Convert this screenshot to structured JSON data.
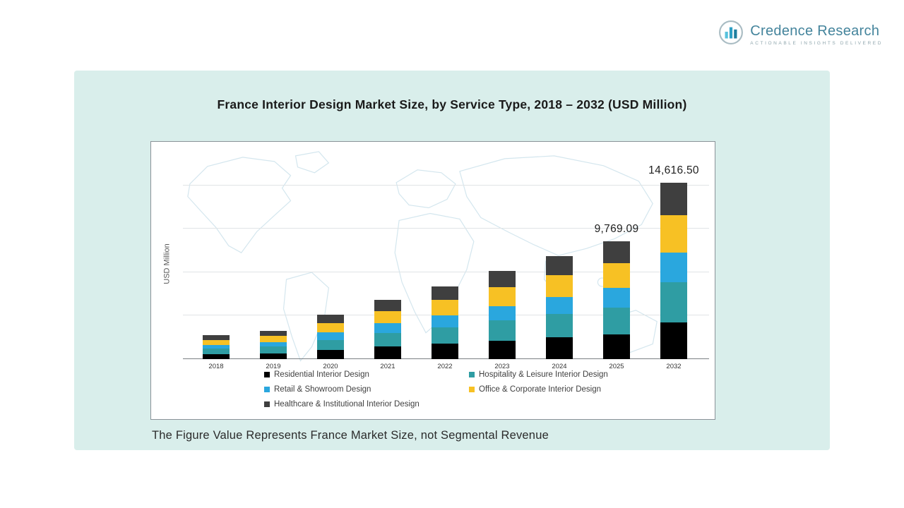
{
  "logo": {
    "name": "Credence Research",
    "tagline": "Actionable Insights Delivered",
    "brand_color": "#2D9FC4"
  },
  "title": "France Interior Design Market Size, by Service Type, 2018 – 2032 (USD Million)",
  "footnote": "The Figure Value Represents France Market Size, not Segmental Revenue",
  "chart_data": {
    "type": "bar",
    "stacked": true,
    "title": "France Interior Design Market Size, by Service Type, 2018 – 2032 (USD Million)",
    "xlabel": "",
    "ylabel": "USD Million",
    "ylim": [
      0,
      18000
    ],
    "grid": true,
    "legend_position": "bottom",
    "categories": [
      "2018",
      "2019",
      "2020",
      "2021",
      "2022",
      "2023",
      "2024",
      "2025",
      "2032"
    ],
    "series": [
      {
        "name": "Residential Interior Design",
        "color": "#000000",
        "values": [
          415,
          494,
          770,
          1027,
          1263,
          1530,
          1786,
          2051.51,
          3069.47
        ]
      },
      {
        "name": "Hospitality & Leisure Interior Design",
        "color": "#2F9DA3",
        "values": [
          450,
          536,
          836,
          1115,
          1371,
          1661,
          1939,
          2227.35,
          3332.56
        ]
      },
      {
        "name": "Retail & Showroom Design",
        "color": "#2AA7DE",
        "values": [
          330,
          392,
          612,
          817,
          1005,
          1217,
          1420,
          1631.44,
          2440.96
        ]
      },
      {
        "name": "Office & Corporate Interior Design",
        "color": "#F7C124",
        "values": [
          415,
          494,
          770,
          1027,
          1263,
          1530,
          1786,
          2051.51,
          3069.47
        ]
      },
      {
        "name": "Healthcare & Institutional Interior Design",
        "color": "#3F3F3F",
        "values": [
          365,
          434,
          677,
          904,
          1113,
          1347,
          1574,
          1807.28,
          2704.04
        ]
      }
    ],
    "totals": [
      1975,
      2350,
      3665,
      4890,
      6015,
      7285,
      8505,
      9769.09,
      14616.5
    ],
    "value_labels": [
      {
        "category": "2025",
        "text": "9,769.09"
      },
      {
        "category": "2032",
        "text": "14,616.50"
      }
    ]
  }
}
